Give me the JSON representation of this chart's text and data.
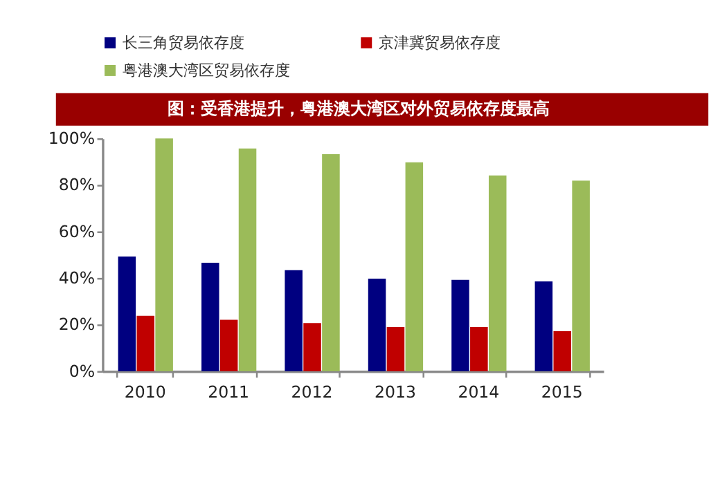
{
  "chart_data": {
    "type": "bar",
    "title": "图：受香港提升，粤港澳大湾区对外贸易依存度最高",
    "categories": [
      "2010",
      "2011",
      "2012",
      "2013",
      "2014",
      "2015"
    ],
    "series": [
      {
        "name": "长三角贸易依存度",
        "color": "#000080",
        "values": [
          49.3,
          46.6,
          43.4,
          39.8,
          39.3,
          38.6
        ]
      },
      {
        "name": "京津冀贸易依存度",
        "color": "#c00000",
        "values": [
          23.8,
          22.1,
          20.7,
          19.0,
          19.0,
          17.2
        ]
      },
      {
        "name": "粤港澳大湾区贸易依存度",
        "color": "#9bbb59",
        "values": [
          100,
          95.7,
          93.3,
          89.8,
          84.1,
          81.9
        ]
      }
    ],
    "ylim": [
      0,
      100
    ],
    "yticks": [
      {
        "value": 0,
        "label": "0%"
      },
      {
        "value": 20,
        "label": "20%"
      },
      {
        "value": 40,
        "label": "40%"
      },
      {
        "value": 60,
        "label": "60%"
      },
      {
        "value": 80,
        "label": "80%"
      },
      {
        "value": 100,
        "label": "100%"
      }
    ],
    "grid": false,
    "legend": "top"
  }
}
